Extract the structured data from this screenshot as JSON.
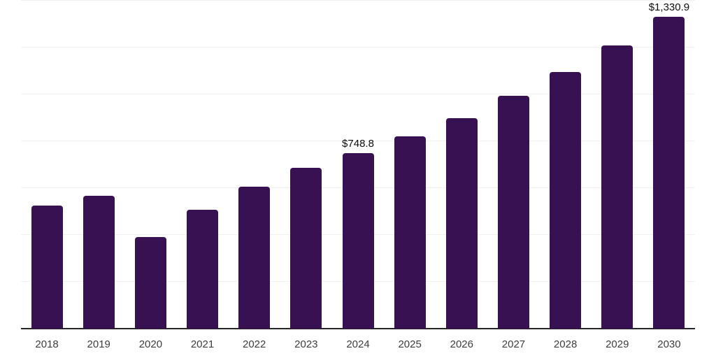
{
  "chart_data": {
    "type": "bar",
    "title": "",
    "xlabel": "",
    "ylabel": "",
    "categories": [
      "2018",
      "2019",
      "2020",
      "2021",
      "2022",
      "2023",
      "2024",
      "2025",
      "2026",
      "2027",
      "2028",
      "2029",
      "2030"
    ],
    "values": [
      525,
      567,
      391,
      507,
      606,
      687,
      748.8,
      821,
      899,
      994,
      1096,
      1209,
      1330.9
    ],
    "data_labels": {
      "2024": "$748.8",
      "2030": "$1,330.9"
    },
    "ylim": [
      0,
      1400
    ],
    "gridline_step": 200,
    "grid": "horizontal-only",
    "legend": "none",
    "colors": {
      "bar": "#381152",
      "axis_line": "#262626",
      "gridline": "#f1f1f1",
      "tick_label": "#3d3d3d",
      "data_label": "#0d0d0d",
      "background": "#ffffff"
    }
  }
}
